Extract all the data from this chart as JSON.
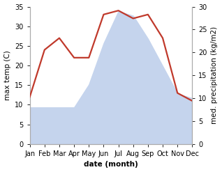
{
  "months": [
    "Jan",
    "Feb",
    "Mar",
    "Apr",
    "May",
    "Jun",
    "Jul",
    "Aug",
    "Sep",
    "Oct",
    "Nov",
    "Dec"
  ],
  "temperature": [
    12,
    24,
    27,
    22,
    22,
    33,
    34,
    32,
    33,
    27,
    13,
    11
  ],
  "precipitation": [
    8,
    8,
    8,
    8,
    13,
    22,
    29,
    28,
    23,
    17,
    11,
    10
  ],
  "temp_color": "#c0392b",
  "precip_color": "#c5d4ed",
  "precip_line_color": "#c5d4ed",
  "precip_fill_alpha": 1.0,
  "left_ylim": [
    0,
    35
  ],
  "right_ylim": [
    0,
    30
  ],
  "left_yticks": [
    0,
    5,
    10,
    15,
    20,
    25,
    30,
    35
  ],
  "right_yticks": [
    0,
    5,
    10,
    15,
    20,
    25,
    30
  ],
  "ylabel_left": "max temp (C)",
  "ylabel_right": "med. precipitation (kg/m2)",
  "xlabel": "date (month)",
  "line_width": 1.6,
  "font_size_labels": 7.5,
  "font_size_ticks": 7,
  "background_color": "#ffffff",
  "spine_color": "#aaaaaa"
}
